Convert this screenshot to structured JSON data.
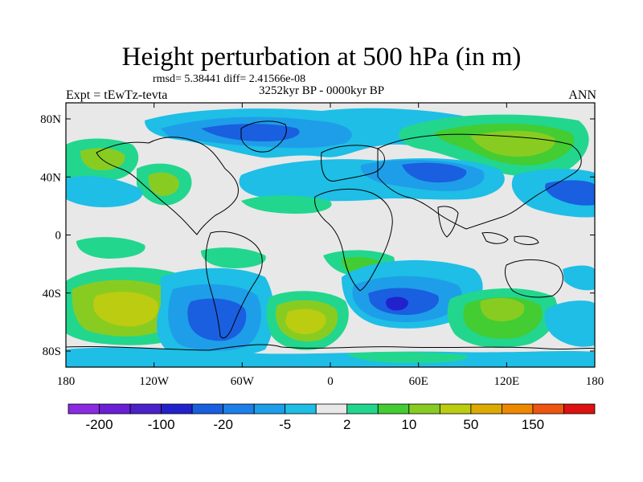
{
  "title": "Height perturbation at 500 hPa (in m)",
  "stats_line": "rmsd= 5.38441 diff= 2.41566e-08",
  "period": "3252kyr BP - 0000kyr BP",
  "experiment": "Expt = tEwTz-tevta",
  "season": "ANN",
  "map": {
    "lon_ticks": [
      "180",
      "120W",
      "60W",
      "0",
      "60E",
      "120E",
      "180"
    ],
    "lat_ticks": [
      "80N",
      "40N",
      "0",
      "40S",
      "80S"
    ],
    "background_color": "#e8e8e8",
    "coastline_color": "#000000"
  },
  "colorbar": {
    "colors": [
      "#8a2be2",
      "#6a1fd6",
      "#4b22c9",
      "#2222cc",
      "#1a5fe0",
      "#1e7fe8",
      "#1e9ee8",
      "#1ebee6",
      "#e8e8e8",
      "#22d68e",
      "#44cc33",
      "#88cc22",
      "#bbcc11",
      "#ddaa00",
      "#ee8800",
      "#ee5511",
      "#dd1111"
    ],
    "labels": [
      "-200",
      "-100",
      "-20",
      "-5",
      "2",
      "10",
      "50",
      "150"
    ]
  },
  "blobs": [
    {
      "lon": -150,
      "lat": 52,
      "level": 10,
      "color": "#88cc22"
    },
    {
      "lon": -100,
      "lat": 35,
      "level": 10,
      "color": "#88cc22"
    },
    {
      "lon": -40,
      "lat": 68,
      "level": -20,
      "color": "#1a5fe0"
    },
    {
      "lon": 0,
      "lat": 45,
      "level": -5,
      "color": "#1ebee6"
    },
    {
      "lon": 55,
      "lat": 42,
      "level": -20,
      "color": "#1a5fe0"
    },
    {
      "lon": 105,
      "lat": 62,
      "level": 50,
      "color": "#bbcc11"
    },
    {
      "lon": 160,
      "lat": 30,
      "level": -20,
      "color": "#1a5fe0"
    },
    {
      "lon": -155,
      "lat": -48,
      "level": 50,
      "color": "#bbcc11"
    },
    {
      "lon": -95,
      "lat": -55,
      "level": -20,
      "color": "#1a5fe0"
    },
    {
      "lon": -25,
      "lat": -58,
      "level": 50,
      "color": "#bbcc11"
    },
    {
      "lon": 45,
      "lat": -50,
      "level": -100,
      "color": "#2222cc"
    },
    {
      "lon": 110,
      "lat": -52,
      "level": 10,
      "color": "#88cc22"
    }
  ]
}
